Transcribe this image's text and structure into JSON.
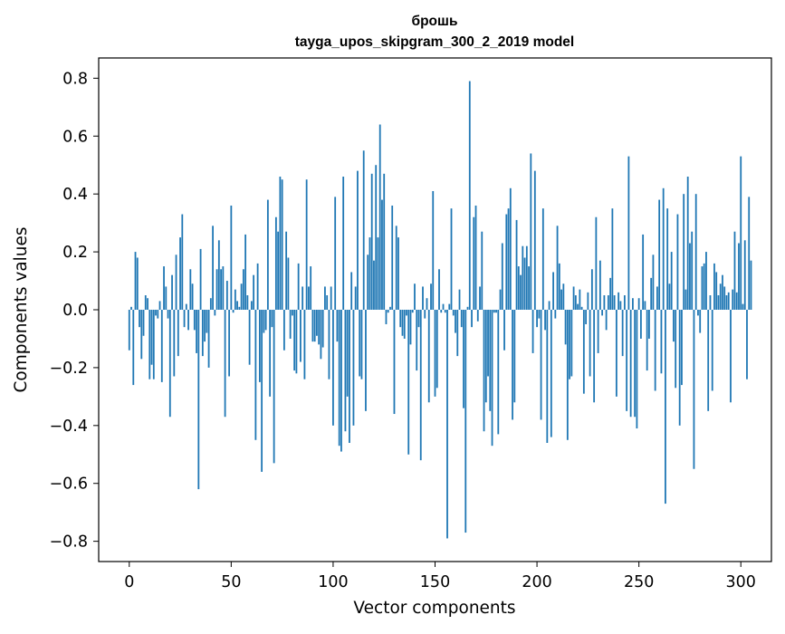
{
  "chart_data": {
    "type": "bar",
    "title": "брошь",
    "subtitle": "tayga_upos_skipgram_300_2_2019 model",
    "xlabel": "Vector components",
    "ylabel": "Components values",
    "xlim": [
      -15,
      315
    ],
    "ylim": [
      -0.87,
      0.87
    ],
    "xticks": [
      0,
      50,
      100,
      150,
      200,
      250,
      300
    ],
    "xtick_labels": [
      "0",
      "50",
      "100",
      "150",
      "200",
      "250",
      "300"
    ],
    "yticks": [
      0.8,
      0.6,
      0.4,
      0.2,
      0.0,
      -0.2,
      -0.4,
      -0.6,
      -0.8
    ],
    "ytick_labels": [
      "0.8",
      "0.6",
      "0.4",
      "0.2",
      "0.0",
      "−0.2",
      "−0.4",
      "−0.6",
      "−0.8"
    ],
    "grid": false,
    "bar_color": "#1f77b4",
    "values": [
      -0.14,
      0.01,
      -0.26,
      0.2,
      0.18,
      -0.06,
      -0.17,
      -0.09,
      0.05,
      0.04,
      -0.24,
      -0.19,
      -0.24,
      -0.02,
      -0.03,
      0.03,
      -0.25,
      0.15,
      0.08,
      -0.03,
      -0.37,
      0.12,
      -0.23,
      0.19,
      -0.16,
      0.25,
      0.33,
      -0.06,
      0.02,
      -0.07,
      0.14,
      0.09,
      -0.07,
      -0.15,
      -0.62,
      0.21,
      -0.16,
      -0.11,
      -0.08,
      -0.2,
      0.04,
      0.29,
      -0.02,
      0.14,
      0.24,
      0.14,
      0.15,
      -0.37,
      0.1,
      -0.23,
      0.36,
      -0.01,
      0.07,
      0.03,
      0.01,
      0.09,
      0.14,
      0.26,
      0.05,
      -0.19,
      0.03,
      0.12,
      -0.45,
      0.16,
      -0.25,
      -0.56,
      -0.08,
      -0.07,
      0.38,
      -0.3,
      -0.06,
      -0.53,
      0.32,
      0.27,
      0.46,
      0.45,
      -0.14,
      0.27,
      0.18,
      -0.1,
      -0.02,
      -0.21,
      -0.22,
      0.16,
      -0.18,
      0.08,
      -0.24,
      0.45,
      0.08,
      0.15,
      -0.11,
      -0.11,
      -0.09,
      -0.12,
      -0.17,
      -0.13,
      0.08,
      0.05,
      -0.24,
      0.08,
      -0.4,
      0.39,
      -0.11,
      -0.47,
      -0.49,
      0.46,
      -0.42,
      -0.3,
      -0.46,
      0.13,
      -0.4,
      0.08,
      0.48,
      -0.23,
      -0.24,
      0.55,
      -0.35,
      0.19,
      0.25,
      0.47,
      0.17,
      0.5,
      0.25,
      0.64,
      0.38,
      0.47,
      -0.05,
      -0.01,
      0.01,
      0.36,
      -0.36,
      0.29,
      0.25,
      -0.06,
      -0.09,
      -0.1,
      -0.02,
      -0.5,
      -0.12,
      -0.01,
      0.09,
      -0.21,
      -0.06,
      -0.52,
      0.08,
      -0.03,
      0.04,
      -0.32,
      0.09,
      0.41,
      -0.3,
      -0.27,
      0.14,
      -0.01,
      0.02,
      -0.01,
      -0.79,
      0.02,
      0.35,
      -0.02,
      -0.08,
      -0.16,
      0.07,
      -0.06,
      -0.34,
      -0.77,
      0.01,
      0.79,
      -0.06,
      0.32,
      0.36,
      -0.04,
      0.08,
      0.27,
      -0.42,
      -0.32,
      -0.23,
      -0.35,
      -0.47,
      -0.01,
      -0.01,
      -0.43,
      0.07,
      0.23,
      -0.14,
      0.33,
      0.35,
      0.42,
      -0.38,
      -0.32,
      0.31,
      0.15,
      0.12,
      0.22,
      0.18,
      0.22,
      0.15,
      0.54,
      -0.15,
      0.48,
      -0.06,
      -0.03,
      -0.38,
      0.35,
      -0.07,
      -0.46,
      0.03,
      -0.44,
      0.13,
      -0.03,
      0.29,
      0.16,
      0.07,
      0.09,
      -0.12,
      -0.45,
      -0.24,
      -0.23,
      0.08,
      0.05,
      0.02,
      0.07,
      0.01,
      -0.29,
      -0.05,
      0.06,
      -0.23,
      0.14,
      -0.32,
      0.32,
      -0.15,
      0.17,
      -0.02,
      0.05,
      -0.07,
      0.05,
      0.11,
      0.35,
      0.05,
      -0.3,
      0.06,
      0.03,
      -0.16,
      0.05,
      -0.35,
      0.53,
      -0.37,
      0.04,
      -0.37,
      -0.41,
      0.04,
      -0.1,
      0.26,
      0.03,
      -0.21,
      -0.1,
      0.11,
      0.19,
      -0.28,
      0.08,
      0.38,
      -0.22,
      0.42,
      -0.67,
      0.35,
      0.09,
      0.2,
      -0.11,
      -0.27,
      0.33,
      -0.4,
      -0.26,
      0.4,
      0.07,
      0.46,
      0.23,
      0.27,
      -0.55,
      0.4,
      -0.02,
      -0.08,
      0.15,
      0.16,
      0.2,
      -0.35,
      0.05,
      -0.28,
      0.16,
      0.13,
      0.05,
      0.09,
      0.12,
      0.08,
      0.05,
      0.06,
      -0.32,
      0.07,
      0.27,
      0.06,
      0.23,
      0.53,
      0.02,
      0.24,
      -0.24,
      0.39,
      0.17
    ],
    "values_note": ""
  }
}
